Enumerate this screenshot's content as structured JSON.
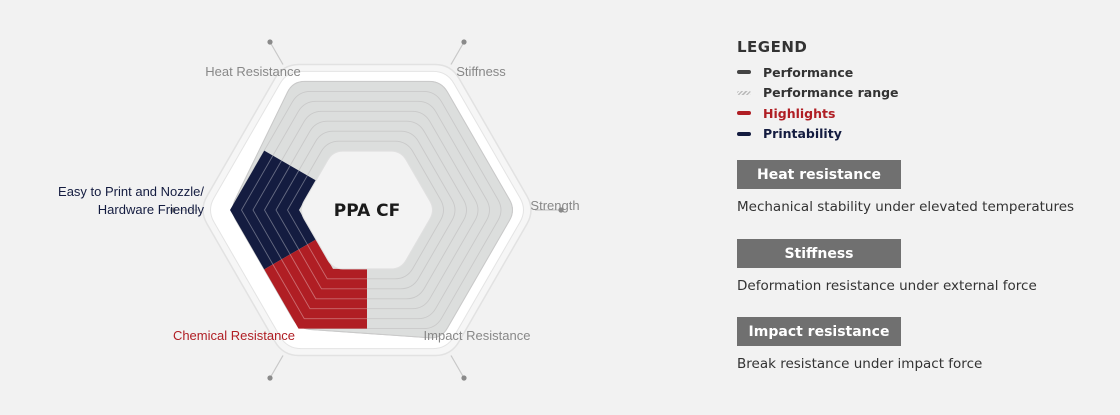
{
  "chart_data": {
    "type": "radar",
    "title": "PPA CF",
    "axes": [
      {
        "name": "Stiffness",
        "category": "performance"
      },
      {
        "name": "Strength",
        "category": "performance"
      },
      {
        "name": "Impact Resistance",
        "category": "performance"
      },
      {
        "name": "Chemical Resistance",
        "category": "highlights"
      },
      {
        "name": "Easy to Print and Nozzle/ Hardware Friendly",
        "category": "printability"
      },
      {
        "name": "Heat Resistance",
        "category": "performance"
      }
    ],
    "scale_max": 8,
    "levels": 8,
    "range_min": [
      4,
      4,
      4,
      4,
      4,
      4
    ],
    "range_max": [
      7,
      7,
      7,
      6,
      6,
      7
    ],
    "highlight": {
      "axes": [
        "Chemical Resistance"
      ],
      "value": 6
    },
    "printability": {
      "axes": [
        "Easy to Print and Nozzle/ Hardware Friendly"
      ],
      "value": 6
    }
  },
  "colors": {
    "performance": "#444444",
    "range_fill": "#dcdedd",
    "highlights": "#b01e24",
    "printability": "#141c40",
    "axis_label": "#888888",
    "background": "#f2f2f2"
  },
  "legend": {
    "title": "LEGEND",
    "items": [
      {
        "label": "Performance",
        "color": "#444444",
        "style": "solid"
      },
      {
        "label": "Performance range",
        "color": "#bdbdbd",
        "style": "hatched"
      },
      {
        "label": "Highlights",
        "color": "#b01e24",
        "style": "solid"
      },
      {
        "label": "Printability",
        "color": "#141c40",
        "style": "solid"
      }
    ]
  },
  "cards": [
    {
      "title": "Heat resistance",
      "description": "Mechanical stability under elevated temperatures"
    },
    {
      "title": "Stiffness",
      "description": "Deformation resistance under external force"
    },
    {
      "title": "Impact resistance",
      "description": "Break resistance under impact force"
    }
  ]
}
